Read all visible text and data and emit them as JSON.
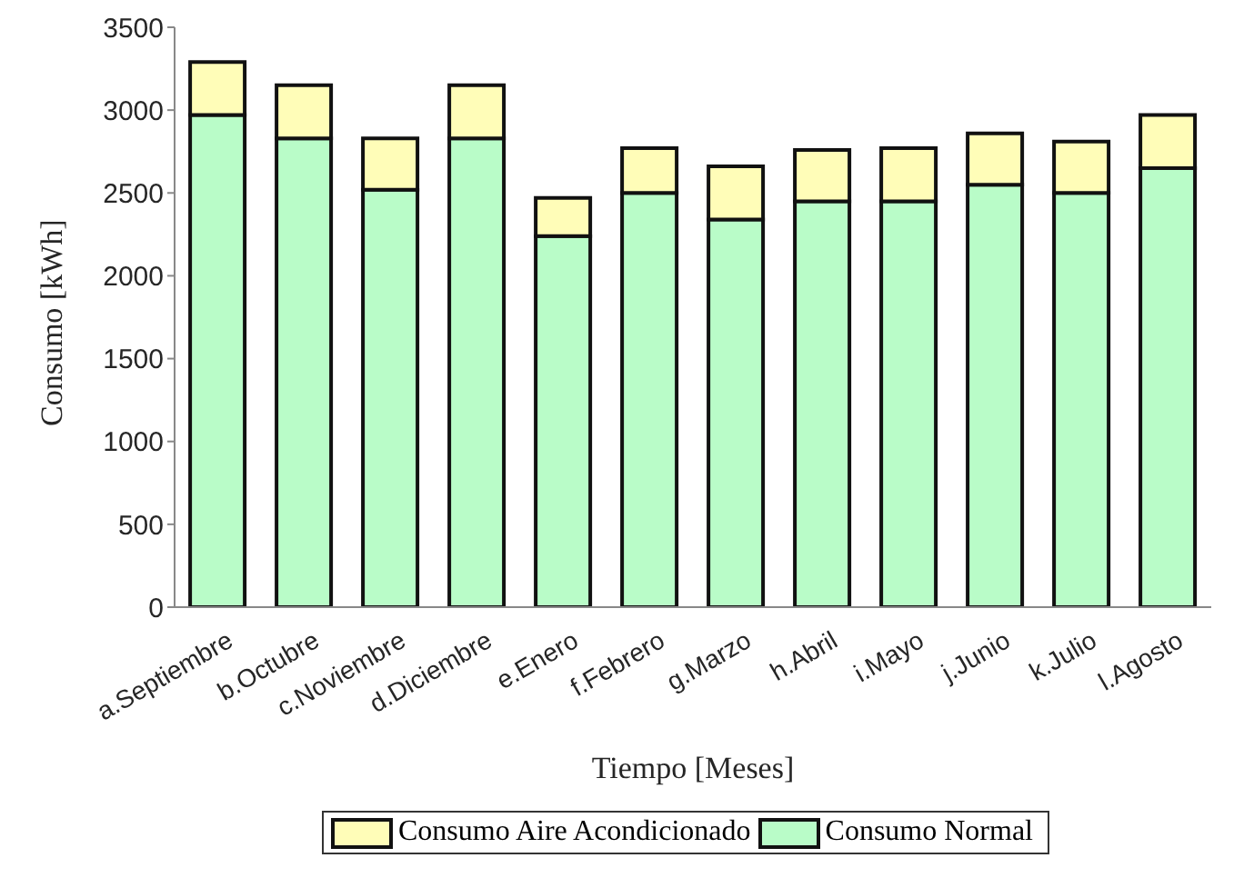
{
  "chart_data": {
    "type": "bar",
    "stacked": true,
    "xlabel": "Tiempo [Meses]",
    "ylabel": "Consumo [kWh]",
    "categories": [
      "a.Septiembre",
      "b.Octubre",
      "c.Noviembre",
      "d.Diciembre",
      "e.Enero",
      "f.Febrero",
      "g.Marzo",
      "h.Abril",
      "i.Mayo",
      "j.Junio",
      "k.Julio",
      "l.Agosto"
    ],
    "series": [
      {
        "name": "Consumo Normal",
        "color": "#b9fcc8",
        "values": [
          2970,
          2830,
          2520,
          2830,
          2240,
          2500,
          2340,
          2450,
          2450,
          2550,
          2500,
          2650
        ]
      },
      {
        "name": "Consumo Aire Acondicionado",
        "color": "#fffdb8",
        "values": [
          320,
          320,
          310,
          320,
          230,
          270,
          320,
          310,
          320,
          310,
          310,
          320
        ]
      }
    ],
    "ylim": [
      0,
      3500
    ],
    "yticks": [
      0,
      500,
      1000,
      1500,
      2000,
      2500,
      3000,
      3500
    ],
    "grid": false,
    "legend": "bottom"
  }
}
